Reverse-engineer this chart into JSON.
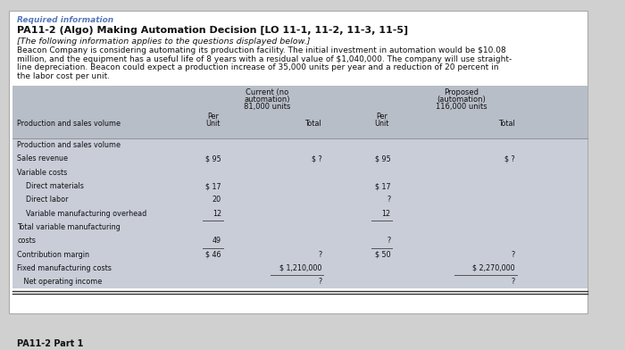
{
  "required_info_label": "Required information",
  "title": "PA11-2 (Algo) Making Automation Decision [LO 11-1, 11-2, 11-3, 11-5]",
  "subtitle": "[The following information applies to the questions displayed below.]",
  "body_lines": [
    "Beacon Company is considering automating its production facility. The initial investment in automation would be $10.08",
    "million, and the equipment has a useful life of 8 years with a residual value of $1,040,000. The company will use straight-",
    "line depreciation. Beacon could expect a production increase of 35,000 units per year and a reduction of 20 percent in",
    "the labor cost per unit."
  ],
  "col_headers": {
    "current_line1": "Current (no",
    "current_line2": "automation)",
    "current_line3": "81,000 units",
    "proposed_line1": "Proposed",
    "proposed_line2": "(automation)",
    "proposed_line3": "116,000 units"
  },
  "footer_label": "PA11-2 Part 1",
  "page_bg": "#d0d0d0",
  "card_bg": "#ffffff",
  "table_header_bg": "#b8bec8",
  "table_row_bg": "#c8cdd8",
  "required_info_color": "#5577bb",
  "title_color": "#111111",
  "body_color": "#111111",
  "table_text_color": "#111111",
  "footer_color": "#111111",
  "row_data": [
    {
      "label": "Production and sales volume",
      "indent": false,
      "cur_unit": "",
      "cur_total": "",
      "prop_unit": "",
      "prop_total": "",
      "is_header_row": true
    },
    {
      "label": "Sales revenue",
      "indent": false,
      "cur_unit": "$ 95",
      "cur_total": "$ ?",
      "prop_unit": "$ 95",
      "prop_total": "$ ?",
      "is_header_row": false
    },
    {
      "label": "Variable costs",
      "indent": false,
      "cur_unit": "",
      "cur_total": "",
      "prop_unit": "",
      "prop_total": "",
      "is_header_row": false
    },
    {
      "label": "Direct materials",
      "indent": true,
      "cur_unit": "$ 17",
      "cur_total": "",
      "prop_unit": "$ 17",
      "prop_total": "",
      "is_header_row": false
    },
    {
      "label": "Direct labor",
      "indent": true,
      "cur_unit": "20",
      "cur_total": "",
      "prop_unit": "?",
      "prop_total": "",
      "is_header_row": false
    },
    {
      "label": "Variable manufacturing overhead",
      "indent": true,
      "cur_unit": "12",
      "cur_total": "",
      "prop_unit": "12",
      "prop_total": "",
      "is_header_row": false,
      "underline_unit": true
    },
    {
      "label": "Total variable manufacturing",
      "indent": false,
      "cur_unit": "",
      "cur_total": "",
      "prop_unit": "",
      "prop_total": "",
      "is_header_row": false
    },
    {
      "label": "costs",
      "indent": false,
      "cur_unit": "49",
      "cur_total": "",
      "prop_unit": "?",
      "prop_total": "",
      "is_header_row": false
    },
    {
      "label": "Contribution margin",
      "indent": false,
      "cur_unit": "$ 46",
      "cur_total": "?",
      "prop_unit": "$ 50",
      "prop_total": "?",
      "is_header_row": false
    },
    {
      "label": "Fixed manufacturing costs",
      "indent": false,
      "cur_unit": "",
      "cur_total": "$ 1,210,000",
      "prop_unit": "",
      "prop_total": "$ 2,270,000",
      "is_header_row": false,
      "underline_total": true
    },
    {
      "label": "   Net operating income",
      "indent": false,
      "cur_unit": "",
      "cur_total": "?",
      "prop_unit": "",
      "prop_total": "?",
      "is_header_row": false,
      "double_underline": true
    }
  ]
}
